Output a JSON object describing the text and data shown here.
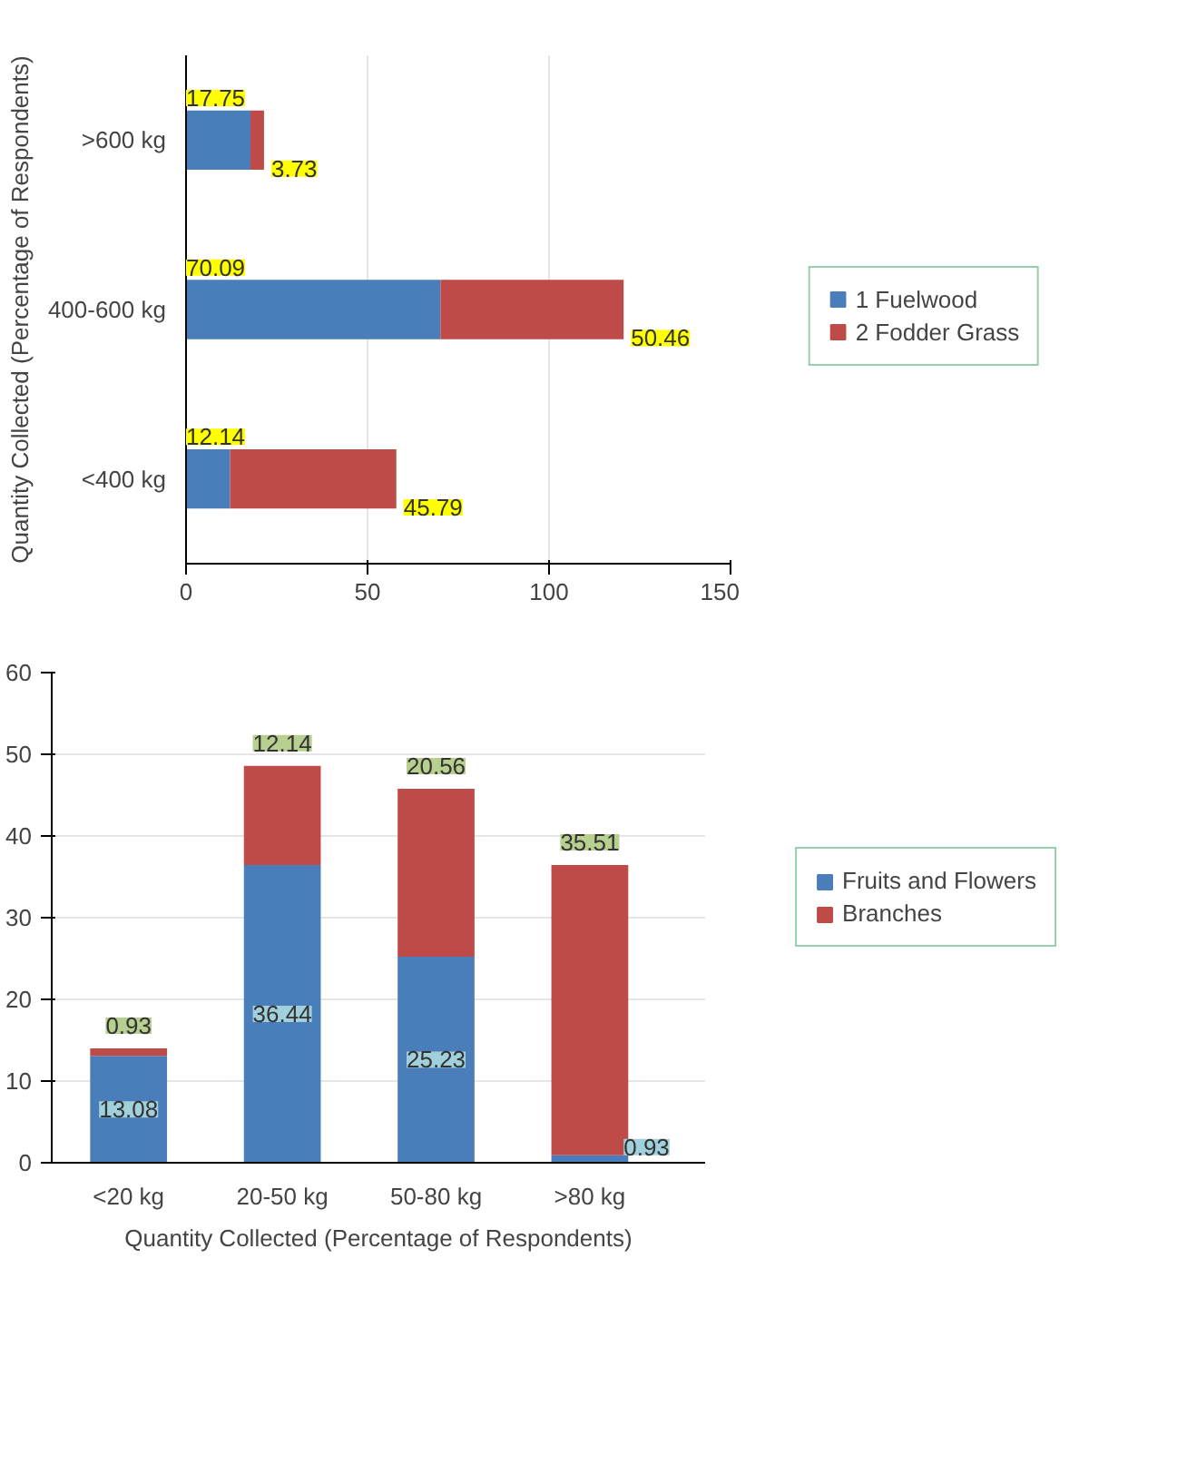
{
  "chart_data": [
    {
      "type": "bar",
      "orientation": "horizontal",
      "stacked": true,
      "ylabel": "Quantity Collected (Percentage of Respondents)",
      "categories": [
        ">600 kg",
        "400-600 kg",
        "<400 kg"
      ],
      "series": [
        {
          "name": "1 Fuelwood",
          "color": "#4a7ebb",
          "values": [
            17.75,
            70.09,
            12.14
          ]
        },
        {
          "name": "2 Fodder Grass",
          "color": "#be4b48",
          "values": [
            3.73,
            50.46,
            45.79
          ]
        }
      ],
      "xlim": [
        0,
        150
      ],
      "xticks": [
        0,
        50,
        100,
        150
      ],
      "grid": "x",
      "legend": "right",
      "data_labels": true
    },
    {
      "type": "bar",
      "stacked": true,
      "xlabel": "Quantity Collected (Percentage of Respondents)",
      "categories": [
        "<20 kg",
        "20-50 kg",
        "50-80 kg",
        ">80 kg"
      ],
      "series": [
        {
          "name": "Fruits and Flowers",
          "color": "#4a7ebb",
          "values": [
            13.08,
            36.44,
            25.23,
            0.93
          ]
        },
        {
          "name": "Branches",
          "color": "#be4b48",
          "values": [
            0.93,
            12.14,
            20.56,
            35.51
          ]
        }
      ],
      "ylim": [
        0,
        60
      ],
      "yticks": [
        0,
        10,
        20,
        30,
        40,
        50,
        60
      ],
      "grid": "y",
      "legend": "right",
      "data_labels": true
    }
  ]
}
